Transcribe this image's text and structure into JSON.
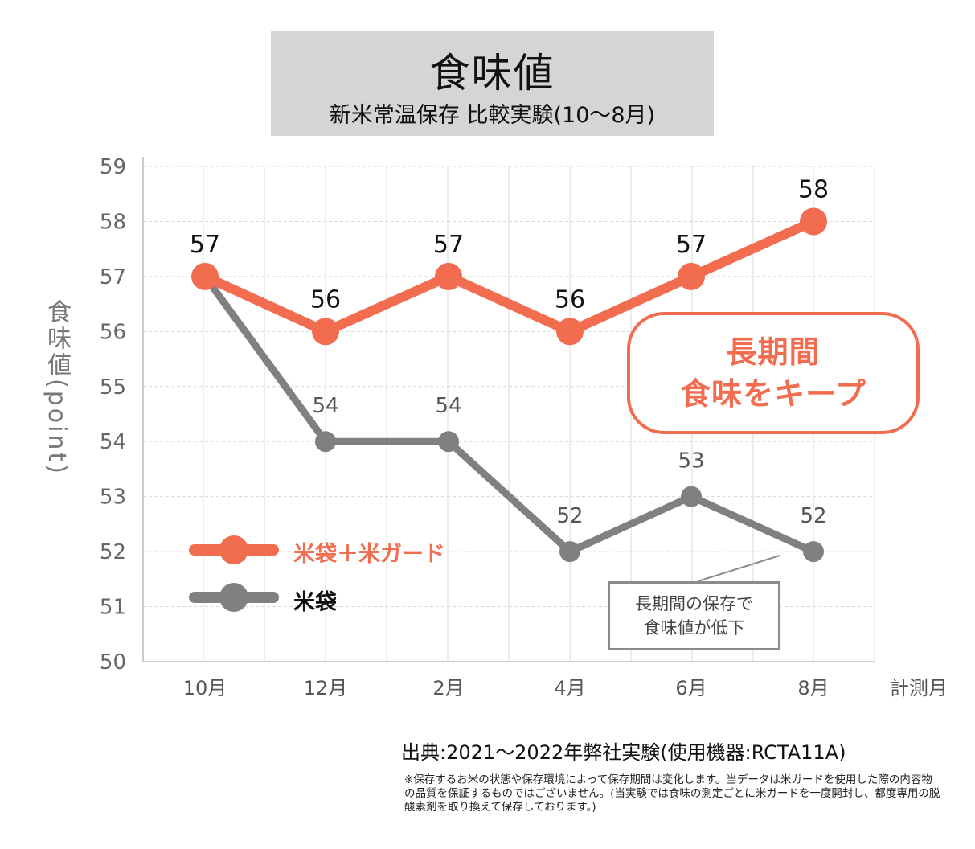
{
  "header": {
    "title": "食味値",
    "subtitle": "新米常温保存 比較実験(10～8月)"
  },
  "y_axis_label": "食味値(point)",
  "x_axis_unit": "計測月",
  "callout": {
    "line1": "長期間",
    "line2": "食味をキープ"
  },
  "annotation": {
    "line1": "長期間の保存で",
    "line2": "食味値が低下"
  },
  "source": "出典:2021～2022年弊社実験(使用機器:RCTA11A)",
  "footnote": "※保存するお米の状態や保存環境によって保存期間は変化します。当データは米ガードを使用した際の内容物の品質を保証するものではございません。(当実験では食味の測定ごとに米ガードを一度開封し、都度専用の脱酸素剤を取り換えて保存しております。)",
  "colors": {
    "orange": "#f26c4f",
    "gray": "#808080",
    "grid": "#d9d9d9",
    "title_bg": "#d5d5d5"
  },
  "chart_data": {
    "type": "line",
    "title": "食味値",
    "subtitle": "新米常温保存 比較実験(10～8月)",
    "xlabel": "計測月",
    "ylabel": "食味値(point)",
    "categories": [
      "10月",
      "12月",
      "2月",
      "4月",
      "6月",
      "8月"
    ],
    "ylim": [
      50,
      59
    ],
    "yticks": [
      "50",
      "51",
      "52",
      "53",
      "54",
      "55",
      "56",
      "57",
      "58",
      "59"
    ],
    "grid": true,
    "legend_position": "bottom-left",
    "series": [
      {
        "name": "米袋＋米ガード",
        "color": "#f26c4f",
        "values": [
          57,
          56,
          57,
          56,
          57,
          58
        ],
        "labels": [
          "57",
          "56",
          "57",
          "56",
          "57",
          "58"
        ]
      },
      {
        "name": "米袋",
        "color": "#808080",
        "values": [
          57,
          54,
          54,
          52,
          53,
          52
        ],
        "labels": [
          "",
          "54",
          "54",
          "52",
          "53",
          "52"
        ]
      }
    ]
  }
}
